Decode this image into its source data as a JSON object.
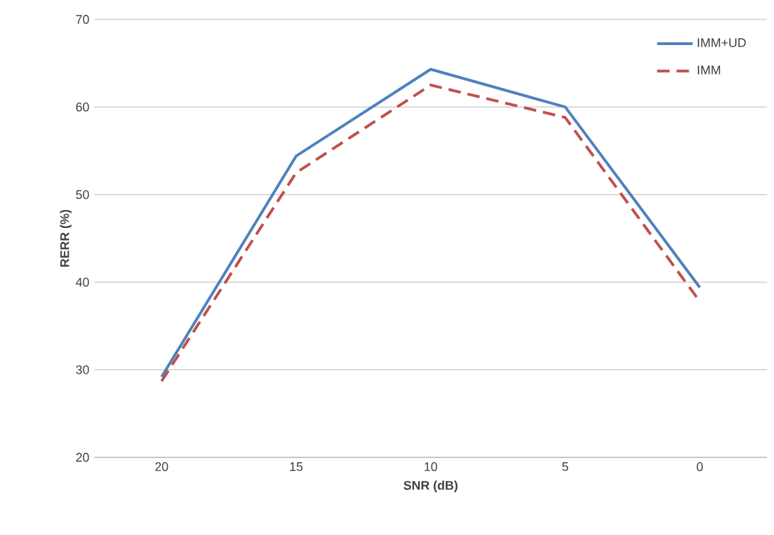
{
  "chart_data": {
    "type": "line",
    "xlabel": "SNR (dB)",
    "ylabel": "RERR (%)",
    "categories": [
      "20",
      "15",
      "10",
      "5",
      "0"
    ],
    "series": [
      {
        "name": "IMM+UD",
        "color": "#4f81bd",
        "line_style": "solid",
        "values": [
          29.2,
          54.4,
          64.3,
          60,
          39.4
        ]
      },
      {
        "name": "IMM",
        "color": "#c0504d",
        "line_style": "dashed",
        "values": [
          28.7,
          52.5,
          62.5,
          58.8,
          37.8
        ]
      }
    ],
    "ylim": [
      20,
      70
    ],
    "yticks": [
      20,
      30,
      40,
      50,
      60,
      70
    ],
    "grid": "y",
    "legend": "top right",
    "marker": "none"
  }
}
